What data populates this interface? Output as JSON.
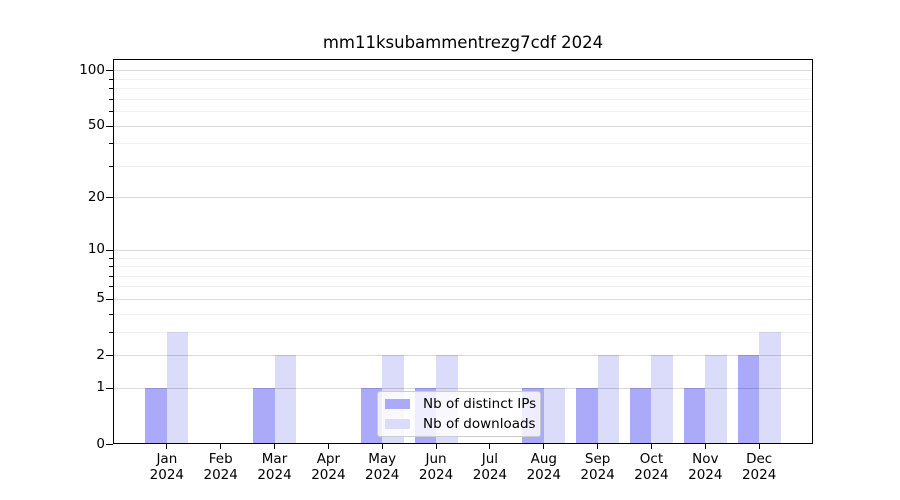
{
  "chart_data": {
    "type": "bar",
    "title": "mm11ksubammentrezg7cdf 2024",
    "year": "2024",
    "categories": [
      "Jan",
      "Feb",
      "Mar",
      "Apr",
      "May",
      "Jun",
      "Jul",
      "Aug",
      "Sep",
      "Oct",
      "Nov",
      "Dec"
    ],
    "series": [
      {
        "name": "Nb of distinct IPs",
        "color": "#aaaaf8",
        "values": [
          1,
          0,
          1,
          0,
          1,
          1,
          0,
          1,
          1,
          1,
          1,
          2
        ]
      },
      {
        "name": "Nb of downloads",
        "color": "#dbdbfa",
        "values": [
          3,
          0,
          2,
          0,
          2,
          2,
          0,
          1,
          2,
          2,
          2,
          3
        ]
      }
    ],
    "y_axis": {
      "scale": "log1p",
      "major_ticks": [
        100,
        50,
        20,
        10,
        5,
        2,
        1,
        0
      ],
      "minor_ticks": [
        90,
        80,
        70,
        60,
        40,
        30,
        9,
        8,
        7,
        6,
        4,
        3
      ],
      "range": [
        0,
        115
      ]
    },
    "grid": "horizontal-on",
    "legend_position": "lower center"
  },
  "legend": {
    "items": [
      {
        "label": "Nb of distinct IPs",
        "color": "#aaaaf8"
      },
      {
        "label": "Nb of downloads",
        "color": "#dbdbfa"
      }
    ]
  }
}
